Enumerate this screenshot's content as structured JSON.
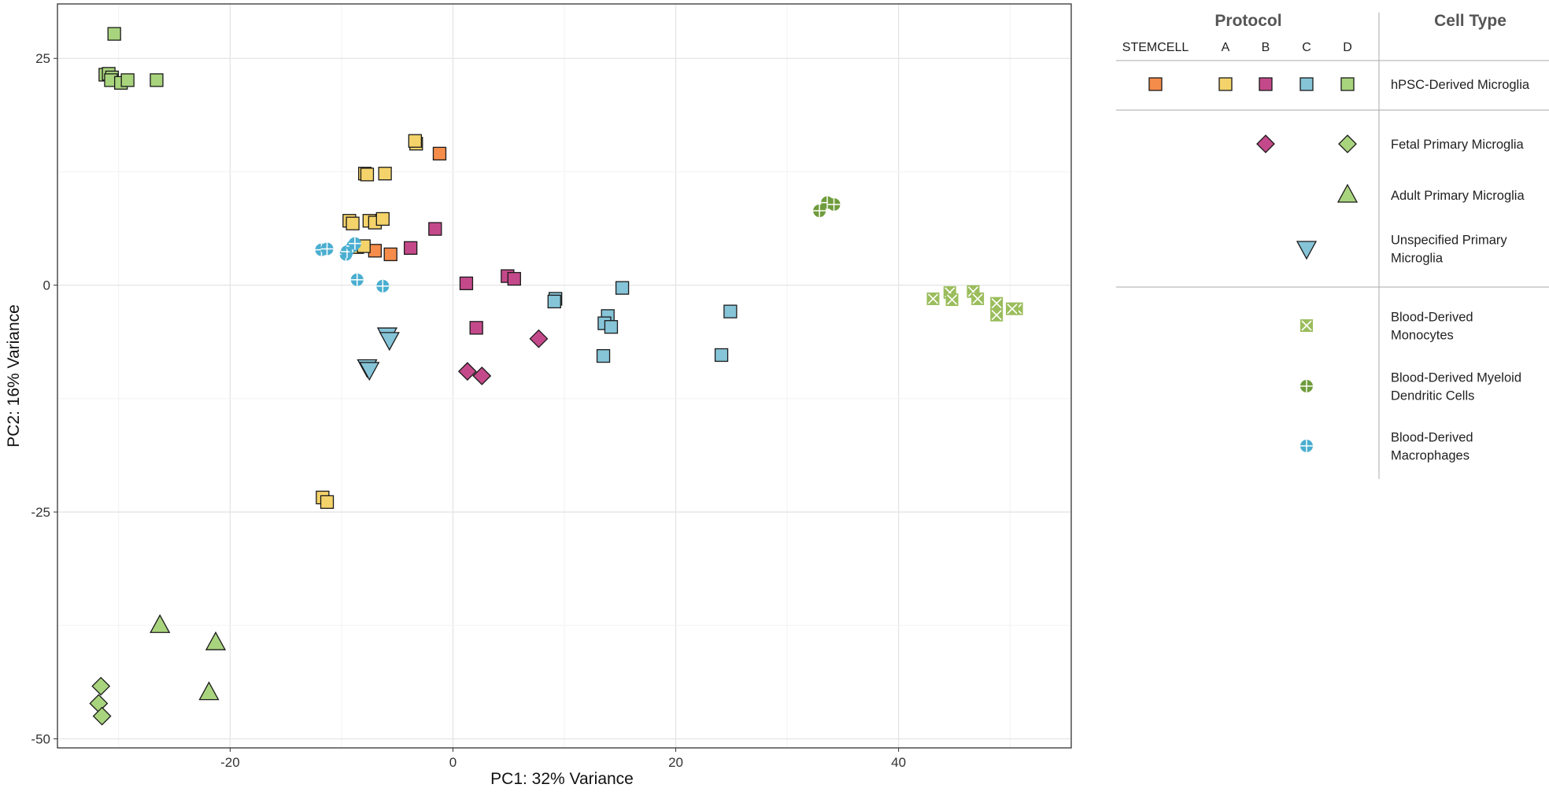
{
  "chart_data": {
    "type": "scatter",
    "xlabel": "PC1: 32% Variance",
    "ylabel": "PC2: 16% Variance",
    "xlim": [
      -35.5,
      55.5
    ],
    "ylim": [
      -51,
      31
    ],
    "xticks": [
      -20,
      0,
      20,
      40
    ],
    "yticks": [
      -50,
      -25,
      0,
      25
    ],
    "grid": true,
    "legend_position": "right",
    "colors": {
      "STEMCELL": "#f58c4a",
      "A": "#f5d36b",
      "B": "#c4498a",
      "C": "#86c4d8",
      "D": "#a9d47e",
      "Blood": "#9bbd5c",
      "BloodDark": "#6f9c3c",
      "BloodBlue": "#4aaed0"
    },
    "legend": {
      "protocol_header": "Protocol",
      "celltype_header": "Cell Type",
      "protocols": [
        "STEMCELL",
        "A",
        "B",
        "C",
        "D"
      ],
      "rows": [
        {
          "cell_type": "hPSC-Derived Microglia",
          "lines": [
            "hPSC-Derived Microglia"
          ]
        },
        {
          "cell_type": "Fetal Primary Microglia",
          "lines": [
            "Fetal Primary Microglia"
          ]
        },
        {
          "cell_type": "Adult Primary Microglia",
          "lines": [
            "Adult Primary Microglia"
          ]
        },
        {
          "cell_type": "Unspecified Primary Microglia",
          "lines": [
            "Unspecified Primary",
            "Microglia"
          ]
        },
        {
          "cell_type": "Blood-Derived Monocytes",
          "lines": [
            "Blood-Derived",
            "Monocytes"
          ]
        },
        {
          "cell_type": "Blood-Derived Myeloid Dendritic Cells",
          "lines": [
            "Blood-Derived Myeloid",
            "Dendritic Cells"
          ]
        },
        {
          "cell_type": "Blood-Derived Macrophages",
          "lines": [
            "Blood-Derived",
            "Macrophages"
          ]
        }
      ]
    },
    "series": [
      {
        "protocol": "STEMCELL",
        "cell_type": "hPSC-Derived Microglia",
        "shape": "square",
        "points": [
          [
            -1.2,
            14.5
          ],
          [
            -7.0,
            3.8
          ],
          [
            -5.6,
            3.4
          ]
        ]
      },
      {
        "protocol": "A",
        "cell_type": "hPSC-Derived Microglia",
        "shape": "square",
        "points": [
          [
            -3.3,
            15.6
          ],
          [
            -3.4,
            15.9
          ],
          [
            -7.9,
            12.3
          ],
          [
            -7.7,
            12.2
          ],
          [
            -6.1,
            12.3
          ],
          [
            -9.3,
            7.1
          ],
          [
            -9.0,
            6.8
          ],
          [
            -7.5,
            7.1
          ],
          [
            -7.0,
            6.9
          ],
          [
            -6.3,
            7.3
          ],
          [
            -8.6,
            4.2
          ],
          [
            -8.0,
            4.3
          ],
          [
            -11.7,
            -23.4
          ],
          [
            -11.3,
            -23.9
          ]
        ]
      },
      {
        "protocol": "B",
        "cell_type": "hPSC-Derived Microglia",
        "shape": "square",
        "points": [
          [
            -1.6,
            6.2
          ],
          [
            -3.8,
            4.1
          ],
          [
            1.2,
            0.2
          ],
          [
            4.9,
            1.0
          ],
          [
            5.5,
            0.7
          ],
          [
            2.1,
            -4.7
          ]
        ]
      },
      {
        "protocol": "C",
        "cell_type": "hPSC-Derived Microglia",
        "shape": "square",
        "points": [
          [
            9.2,
            -1.5
          ],
          [
            9.1,
            -1.8
          ],
          [
            15.2,
            -0.3
          ],
          [
            13.9,
            -3.4
          ],
          [
            13.6,
            -4.2
          ],
          [
            14.2,
            -4.6
          ],
          [
            13.5,
            -7.8
          ],
          [
            24.9,
            -2.9
          ],
          [
            24.1,
            -7.7
          ]
        ]
      },
      {
        "protocol": "D",
        "cell_type": "hPSC-Derived Microglia",
        "shape": "square",
        "points": [
          [
            -30.4,
            27.7
          ],
          [
            -31.2,
            23.2
          ],
          [
            -30.9,
            23.3
          ],
          [
            -30.6,
            22.9
          ],
          [
            -30.7,
            22.6
          ],
          [
            -29.8,
            22.3
          ],
          [
            -29.2,
            22.6
          ],
          [
            -26.6,
            22.6
          ]
        ]
      },
      {
        "protocol": "B",
        "cell_type": "Fetal Primary Microglia",
        "shape": "diamond",
        "points": [
          [
            7.7,
            -5.9
          ],
          [
            1.3,
            -9.5
          ],
          [
            2.6,
            -10.0
          ]
        ]
      },
      {
        "protocol": "D",
        "cell_type": "Fetal Primary Microglia",
        "shape": "diamond",
        "points": [
          [
            -31.6,
            -44.2
          ],
          [
            -31.8,
            -46.1
          ],
          [
            -31.5,
            -47.5
          ]
        ]
      },
      {
        "protocol": "D",
        "cell_type": "Adult Primary Microglia",
        "shape": "triangle",
        "points": [
          [
            -26.3,
            -37.5
          ],
          [
            -21.3,
            -39.4
          ],
          [
            -21.9,
            -44.9
          ]
        ]
      },
      {
        "protocol": "C",
        "cell_type": "Unspecified Primary Microglia",
        "shape": "triangle-down",
        "points": [
          [
            -5.9,
            -5.5
          ],
          [
            -5.7,
            -6.0
          ],
          [
            -7.7,
            -9.0
          ],
          [
            -7.5,
            -9.3
          ]
        ]
      },
      {
        "protocol": "none",
        "cell_type": "Blood-Derived Monocytes",
        "shape": "square-x",
        "points": [
          [
            43.1,
            -1.5
          ],
          [
            44.6,
            -0.8
          ],
          [
            44.8,
            -1.6
          ],
          [
            46.7,
            -0.7
          ],
          [
            47.1,
            -1.5
          ],
          [
            48.8,
            -2.0
          ],
          [
            48.8,
            -3.3
          ],
          [
            50.6,
            -2.6
          ],
          [
            50.2,
            -2.6
          ]
        ]
      },
      {
        "protocol": "none",
        "cell_type": "Blood-Derived Myeloid Dendritic Cells",
        "shape": "circle-plus",
        "points": [
          [
            32.9,
            8.2
          ],
          [
            33.6,
            9.1
          ],
          [
            34.2,
            8.9
          ]
        ]
      },
      {
        "protocol": "none",
        "cell_type": "Blood-Derived Macrophages",
        "shape": "circle-plus",
        "points": [
          [
            -11.8,
            3.9
          ],
          [
            -11.3,
            4.0
          ],
          [
            -9.6,
            3.4
          ],
          [
            -9.5,
            3.7
          ],
          [
            -9.0,
            4.3
          ],
          [
            -8.8,
            4.6
          ],
          [
            -8.6,
            0.6
          ],
          [
            -6.3,
            -0.1
          ]
        ]
      }
    ]
  }
}
